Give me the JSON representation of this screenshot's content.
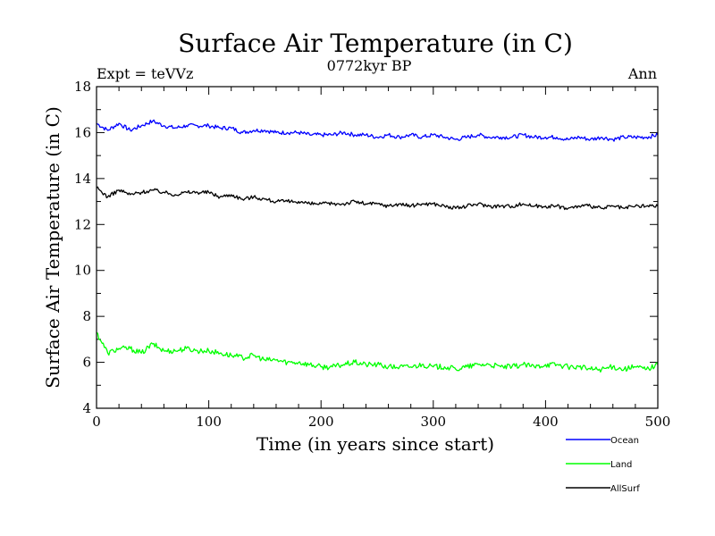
{
  "chart_data": {
    "type": "line",
    "title": "Surface Air Temperature (in C)",
    "subtitle": "0772kyr BP",
    "left_label": "Expt = teVVz",
    "right_label": "Ann",
    "xlabel": "Time (in years since start)",
    "ylabel": "Surface Air Temperature (in C)",
    "xlim": [
      0,
      500
    ],
    "ylim": [
      4,
      18
    ],
    "x_ticks": [
      0,
      100,
      200,
      300,
      400,
      500
    ],
    "y_ticks": [
      4,
      6,
      8,
      10,
      12,
      14,
      16,
      18
    ],
    "x_tick_labels": [
      "0",
      "100",
      "200",
      "300",
      "400",
      "500"
    ],
    "y_tick_labels": [
      "4",
      "6",
      "8",
      "10",
      "12",
      "14",
      "16",
      "18"
    ],
    "grid": false,
    "legend_position": "bottom-right",
    "x": [
      0,
      10,
      20,
      30,
      40,
      50,
      60,
      70,
      80,
      90,
      100,
      110,
      120,
      130,
      140,
      150,
      160,
      170,
      180,
      190,
      200,
      210,
      220,
      230,
      240,
      250,
      260,
      270,
      280,
      290,
      300,
      310,
      320,
      330,
      340,
      350,
      360,
      370,
      380,
      390,
      400,
      410,
      420,
      430,
      440,
      450,
      460,
      470,
      480,
      490,
      500
    ],
    "series": [
      {
        "name": "Ocean",
        "color": "#0000ff",
        "values": [
          16.4,
          16.1,
          16.4,
          16.1,
          16.3,
          16.5,
          16.3,
          16.2,
          16.3,
          16.3,
          16.3,
          16.2,
          16.2,
          16.0,
          16.1,
          16.1,
          16.0,
          16.0,
          16.0,
          15.9,
          15.9,
          15.9,
          16.0,
          15.9,
          15.9,
          15.8,
          15.9,
          15.8,
          15.9,
          15.8,
          15.9,
          15.8,
          15.7,
          15.8,
          15.9,
          15.8,
          15.8,
          15.8,
          15.9,
          15.8,
          15.8,
          15.8,
          15.7,
          15.8,
          15.7,
          15.8,
          15.7,
          15.8,
          15.8,
          15.8,
          15.9
        ]
      },
      {
        "name": "Land",
        "color": "#00ff00",
        "values": [
          7.3,
          6.4,
          6.6,
          6.6,
          6.4,
          6.8,
          6.5,
          6.5,
          6.6,
          6.5,
          6.5,
          6.4,
          6.3,
          6.2,
          6.3,
          6.1,
          6.1,
          6.0,
          6.0,
          5.9,
          5.8,
          5.8,
          5.9,
          6.0,
          5.9,
          5.9,
          5.8,
          5.8,
          5.8,
          5.9,
          5.8,
          5.8,
          5.7,
          5.8,
          5.9,
          5.9,
          5.8,
          5.8,
          5.9,
          5.8,
          5.9,
          5.9,
          5.8,
          5.8,
          5.7,
          5.7,
          5.8,
          5.7,
          5.8,
          5.7,
          5.9
        ]
      },
      {
        "name": "AllSurf",
        "color": "#000000",
        "values": [
          13.6,
          13.2,
          13.5,
          13.3,
          13.4,
          13.5,
          13.4,
          13.3,
          13.4,
          13.4,
          13.4,
          13.2,
          13.3,
          13.1,
          13.2,
          13.1,
          13.0,
          13.0,
          13.0,
          12.9,
          12.9,
          12.9,
          12.9,
          13.0,
          12.9,
          12.9,
          12.8,
          12.9,
          12.8,
          12.9,
          12.9,
          12.8,
          12.7,
          12.8,
          12.9,
          12.8,
          12.8,
          12.8,
          12.9,
          12.8,
          12.8,
          12.8,
          12.7,
          12.8,
          12.8,
          12.7,
          12.8,
          12.7,
          12.8,
          12.8,
          12.8
        ]
      }
    ]
  }
}
